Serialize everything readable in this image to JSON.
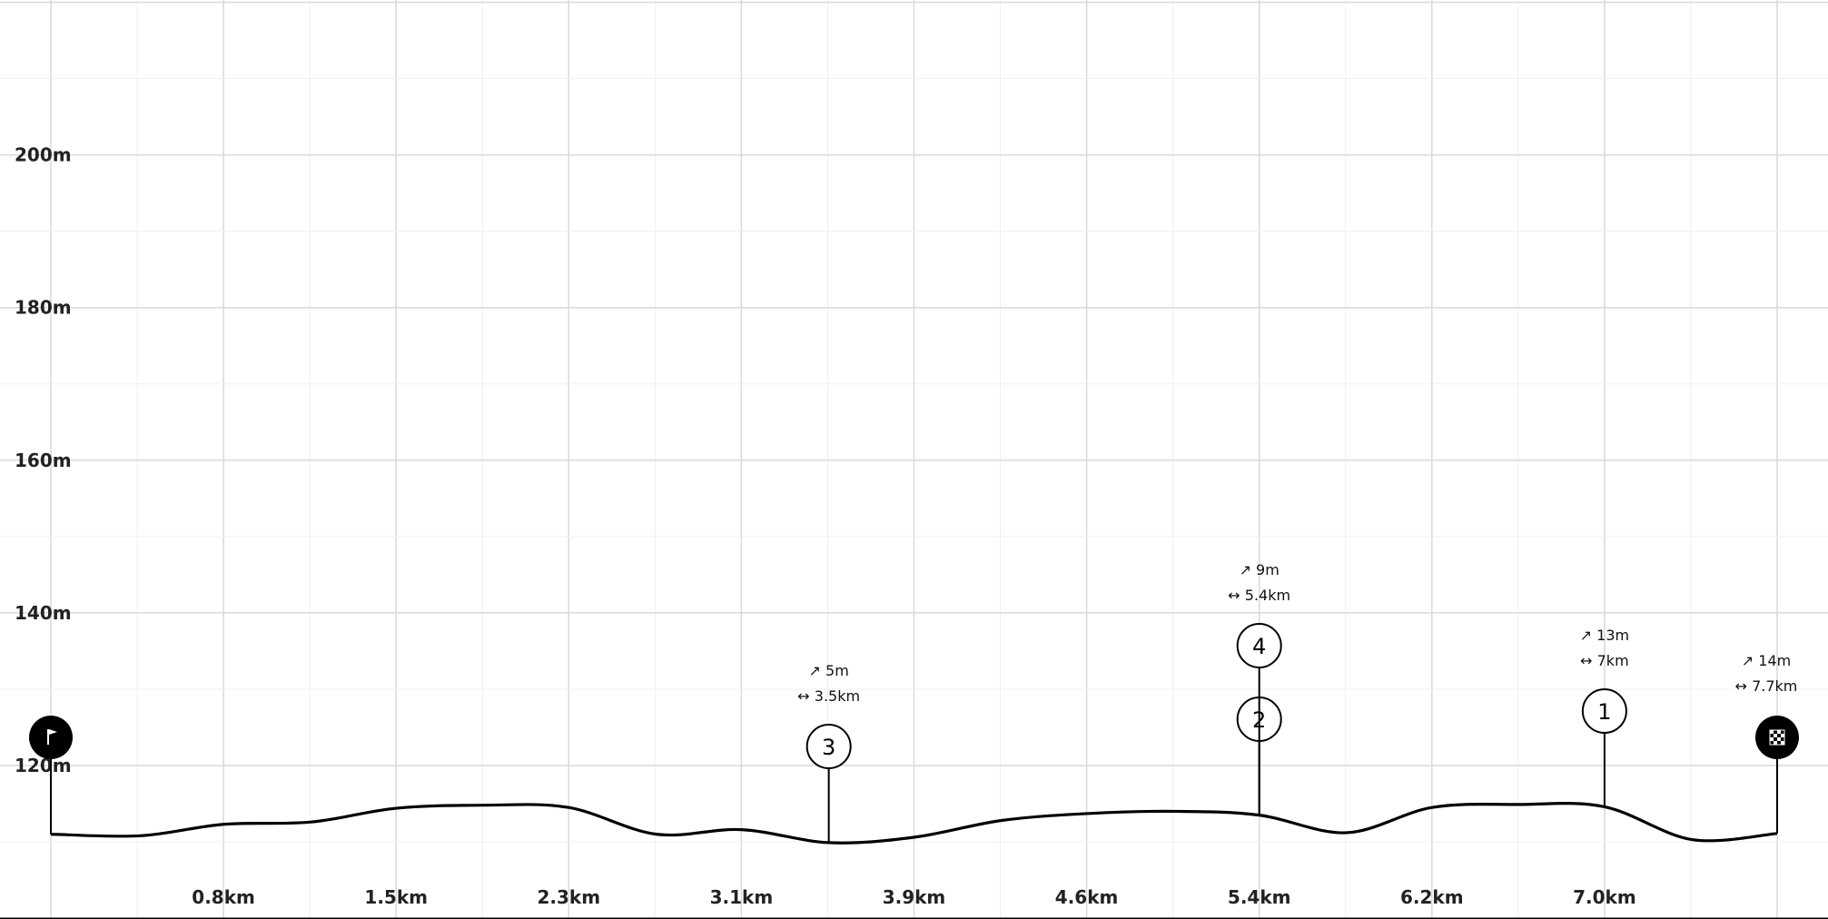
{
  "chart_data": {
    "type": "line",
    "title": "",
    "xlabel": "",
    "ylabel": "",
    "x_unit": "km",
    "y_unit": "m",
    "xlim": [
      0,
      7.7
    ],
    "ylim": [
      110,
      230
    ],
    "x_ticks": [
      "0.8km",
      "1.5km",
      "2.3km",
      "3.1km",
      "3.9km",
      "4.6km",
      "5.4km",
      "6.2km",
      "7.0km"
    ],
    "y_ticks": [
      "120m",
      "140m",
      "160m",
      "180m",
      "200m"
    ],
    "grid": true,
    "series": [
      {
        "x": [
          0,
          0.4,
          0.77,
          1.16,
          1.54,
          1.93,
          2.31,
          2.7,
          3.08,
          3.47,
          3.85,
          4.24,
          4.62,
          5.01,
          5.39,
          5.78,
          6.16,
          6.55,
          6.93,
          7.32,
          7.7
        ],
        "y": [
          111,
          110.8,
          112.3,
          112.6,
          114.4,
          114.8,
          114.5,
          111,
          111.6,
          109.9,
          110.6,
          112.8,
          113.7,
          114,
          113.5,
          111.2,
          114.5,
          114.9,
          114.6,
          110.3,
          111.1
        ]
      }
    ],
    "markers": [
      {
        "id": "start",
        "icon": "start-flag-icon",
        "x": 0,
        "y": 111
      },
      {
        "id": "3",
        "label": "3",
        "x": 3.47,
        "y": 109.9,
        "ann_gain": "5m",
        "ann_dist": "3.5km"
      },
      {
        "id": "2",
        "label": "2",
        "x": 5.39,
        "y": 113.5
      },
      {
        "id": "4",
        "label": "4",
        "x": 5.39,
        "y": 113.5,
        "ann_gain": "9m",
        "ann_dist": "5.4km"
      },
      {
        "id": "1",
        "label": "1",
        "x": 6.93,
        "y": 114.6,
        "ann_gain": "13m",
        "ann_dist": "7km"
      },
      {
        "id": "finish",
        "icon": "finish-flag-icon",
        "x": 7.7,
        "y": 111.1,
        "ann_gain": "14m",
        "ann_dist": "7.7km"
      }
    ],
    "icons": {
      "gain": "↗",
      "distance": "↔"
    },
    "colors": {
      "line": "#000000",
      "grid_major": "#d9d9d9",
      "grid_minor": "#f0f0f0",
      "marker_fill": "#ffffff",
      "endpoint_fill": "#000000"
    }
  }
}
